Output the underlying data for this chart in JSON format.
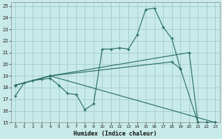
{
  "xlabel": "Humidex (Indice chaleur)",
  "bg_color": "#c8eae8",
  "grid_color": "#a0cccc",
  "line_color": "#2a7068",
  "xlim": [
    0,
    23
  ],
  "ylim": [
    15,
    25
  ],
  "xticks": [
    0,
    1,
    2,
    3,
    4,
    5,
    6,
    7,
    8,
    9,
    10,
    11,
    12,
    13,
    14,
    15,
    16,
    17,
    18,
    19,
    20,
    21,
    22,
    23
  ],
  "yticks": [
    15,
    16,
    17,
    18,
    19,
    20,
    21,
    22,
    23,
    24,
    25
  ],
  "line1_x": [
    0,
    1,
    2,
    3,
    4,
    5,
    6,
    7,
    8,
    9,
    10,
    11,
    12,
    13,
    14,
    15,
    16,
    17,
    18,
    19
  ],
  "line1_y": [
    17.3,
    18.4,
    18.6,
    18.7,
    18.8,
    18.2,
    17.5,
    17.4,
    16.1,
    16.6,
    21.3,
    21.3,
    21.4,
    21.3,
    22.5,
    24.7,
    24.8,
    23.2,
    22.2,
    19.6
  ],
  "line2_x": [
    0,
    4,
    18,
    19,
    21,
    22,
    23
  ],
  "line2_y": [
    18.2,
    19.0,
    20.2,
    19.6,
    15.0,
    15.0,
    15.0
  ],
  "line3_x": [
    0,
    4,
    20,
    21,
    22,
    23
  ],
  "line3_y": [
    18.2,
    19.0,
    21.0,
    15.0,
    15.0,
    15.0
  ],
  "line4_x": [
    0,
    4,
    23
  ],
  "line4_y": [
    18.2,
    19.0,
    15.0
  ]
}
